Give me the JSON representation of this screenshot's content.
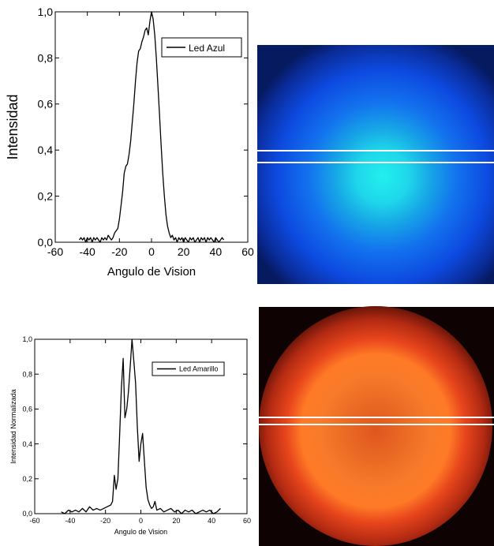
{
  "chart_data": [
    {
      "type": "line",
      "xlabel": "Angulo de Vision",
      "ylabel": "Intensidad",
      "xlim": [
        -60,
        60
      ],
      "ylim": [
        0,
        1
      ],
      "x_ticks": [
        "-60",
        "-40",
        "-20",
        "0",
        "20",
        "40",
        "60"
      ],
      "y_ticks": [
        "0,0",
        "0,2",
        "0,4",
        "0,6",
        "0,8",
        "1,0"
      ],
      "grid": false,
      "legend": "top-right",
      "series": [
        {
          "name": "Led Azul",
          "color": "#000000",
          "x": [
            -45,
            -44,
            -43,
            -42,
            -41,
            -40,
            -39,
            -38,
            -37,
            -36,
            -35,
            -34,
            -33,
            -32,
            -31,
            -30,
            -29,
            -28,
            -27,
            -26,
            -25,
            -24,
            -23,
            -22,
            -21,
            -20,
            -19,
            -18,
            -17,
            -16,
            -15,
            -14,
            -13,
            -12,
            -11,
            -10,
            -9,
            -8,
            -7,
            -6,
            -5,
            -4,
            -3,
            -2,
            -1,
            0,
            1,
            2,
            3,
            4,
            5,
            6,
            7,
            8,
            9,
            10,
            11,
            12,
            13,
            14,
            15,
            16,
            17,
            18,
            19,
            20,
            21,
            22,
            23,
            24,
            25,
            26,
            27,
            28,
            29,
            30,
            31,
            32,
            33,
            34,
            35,
            36,
            37,
            38,
            39,
            40,
            41,
            42,
            43,
            44,
            45
          ],
          "values": [
            0.01,
            0.02,
            0.01,
            0.02,
            0.0,
            0.02,
            0.01,
            0.02,
            0.0,
            0.02,
            0.01,
            0.02,
            0.01,
            0.0,
            0.02,
            0.01,
            0.02,
            0.01,
            0.03,
            0.02,
            0.01,
            0.02,
            0.04,
            0.05,
            0.06,
            0.1,
            0.16,
            0.22,
            0.3,
            0.33,
            0.34,
            0.38,
            0.44,
            0.52,
            0.6,
            0.7,
            0.78,
            0.83,
            0.84,
            0.87,
            0.89,
            0.92,
            0.93,
            0.9,
            0.96,
            1.0,
            0.97,
            0.9,
            0.8,
            0.68,
            0.55,
            0.42,
            0.3,
            0.2,
            0.12,
            0.07,
            0.04,
            0.02,
            0.03,
            0.01,
            0.02,
            0.0,
            0.02,
            0.01,
            0.02,
            0.0,
            0.02,
            0.01,
            0.0,
            0.02,
            0.01,
            0.02,
            0.0,
            0.01,
            0.02,
            0.0,
            0.02,
            0.01,
            0.02,
            0.0,
            0.02,
            0.01,
            0.02,
            0.01,
            0.0,
            0.02,
            0.01,
            0.0,
            0.01,
            0.02,
            0.01
          ]
        }
      ]
    },
    {
      "type": "line",
      "xlabel": "Angulo de Vision",
      "ylabel": "Intensidad Normalizada",
      "xlim": [
        -60,
        60
      ],
      "ylim": [
        0,
        1
      ],
      "x_ticks": [
        "-60",
        "-40",
        "-20",
        "0",
        "20",
        "40",
        "60"
      ],
      "y_ticks": [
        "0,0",
        "0,2",
        "0,4",
        "0,6",
        "0,8",
        "1,0"
      ],
      "grid": false,
      "legend": "top-right",
      "series": [
        {
          "name": "Led Amarillo",
          "color": "#000000",
          "x": [
            -45,
            -43,
            -41,
            -39,
            -37,
            -35,
            -33,
            -31,
            -29,
            -27,
            -25,
            -23,
            -21,
            -19,
            -17,
            -16,
            -15,
            -14,
            -13,
            -12,
            -11,
            -10,
            -9,
            -8,
            -7,
            -6,
            -5,
            -4,
            -3,
            -2,
            -1,
            0,
            1,
            2,
            3,
            4,
            5,
            6,
            7,
            8,
            9,
            11,
            13,
            15,
            17,
            19,
            21,
            23,
            25,
            27,
            29,
            31,
            33,
            35,
            37,
            39,
            41,
            43,
            45
          ],
          "values": [
            0.01,
            0.0,
            0.02,
            0.01,
            0.02,
            0.01,
            0.03,
            0.01,
            0.04,
            0.02,
            0.03,
            0.02,
            0.03,
            0.04,
            0.05,
            0.07,
            0.22,
            0.14,
            0.2,
            0.45,
            0.72,
            0.89,
            0.55,
            0.6,
            0.7,
            0.85,
            1.0,
            0.88,
            0.75,
            0.5,
            0.3,
            0.4,
            0.46,
            0.3,
            0.15,
            0.08,
            0.05,
            0.03,
            0.04,
            0.07,
            0.02,
            0.03,
            0.01,
            0.02,
            0.03,
            0.01,
            0.02,
            0.0,
            0.02,
            0.01,
            0.02,
            0.0,
            0.01,
            0.02,
            0.01,
            0.02,
            0.0,
            0.01,
            0.03
          ]
        }
      ]
    }
  ]
}
